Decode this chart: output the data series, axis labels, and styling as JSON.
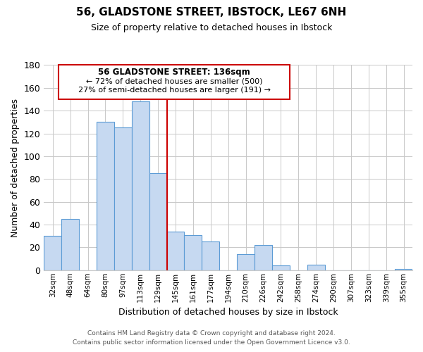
{
  "title1": "56, GLADSTONE STREET, IBSTOCK, LE67 6NH",
  "title2": "Size of property relative to detached houses in Ibstock",
  "xlabel": "Distribution of detached houses by size in Ibstock",
  "ylabel": "Number of detached properties",
  "bar_labels": [
    "32sqm",
    "48sqm",
    "64sqm",
    "80sqm",
    "97sqm",
    "113sqm",
    "129sqm",
    "145sqm",
    "161sqm",
    "177sqm",
    "194sqm",
    "210sqm",
    "226sqm",
    "242sqm",
    "258sqm",
    "274sqm",
    "290sqm",
    "307sqm",
    "323sqm",
    "339sqm",
    "355sqm"
  ],
  "bar_values": [
    30,
    45,
    0,
    130,
    125,
    148,
    85,
    34,
    31,
    25,
    0,
    14,
    22,
    4,
    0,
    5,
    0,
    0,
    0,
    0,
    1
  ],
  "bar_color": "#c6d9f1",
  "bar_edge_color": "#5b9bd5",
  "vline_x": 6.5,
  "vline_color": "#cc0000",
  "ylim": [
    0,
    180
  ],
  "yticks": [
    0,
    20,
    40,
    60,
    80,
    100,
    120,
    140,
    160,
    180
  ],
  "annotation_title": "56 GLADSTONE STREET: 136sqm",
  "annotation_line1": "← 72% of detached houses are smaller (500)",
  "annotation_line2": "27% of semi-detached houses are larger (191) →",
  "annotation_box_color": "#ffffff",
  "annotation_box_edge": "#cc0000",
  "footnote1": "Contains HM Land Registry data © Crown copyright and database right 2024.",
  "footnote2": "Contains public sector information licensed under the Open Government Licence v3.0."
}
